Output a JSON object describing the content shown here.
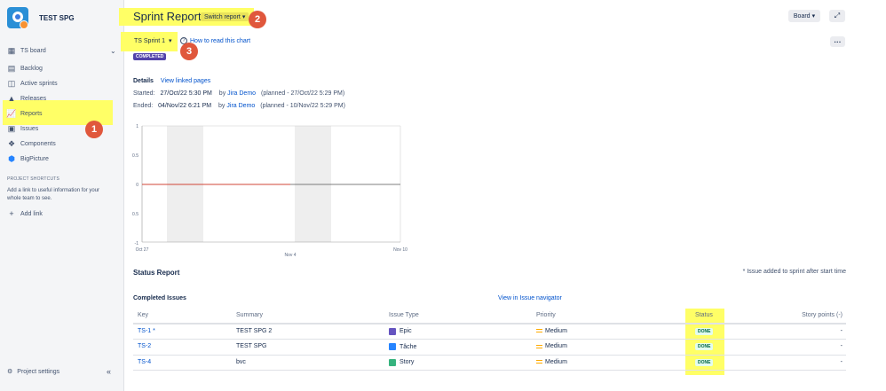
{
  "project": {
    "name": "TEST SPG"
  },
  "sidebar": {
    "board_label": "TS board",
    "items": [
      {
        "label": "Backlog",
        "icon": "backlog-icon"
      },
      {
        "label": "Active sprints",
        "icon": "active-sprints-icon"
      },
      {
        "label": "Releases",
        "icon": "releases-icon"
      },
      {
        "label": "Reports",
        "icon": "reports-icon"
      },
      {
        "label": "Issues",
        "icon": "issues-icon"
      },
      {
        "label": "Components",
        "icon": "components-icon"
      },
      {
        "label": "BigPicture",
        "icon": "bigpicture-icon"
      }
    ],
    "shortcuts_title": "PROJECT SHORTCUTS",
    "shortcuts_text": "Add a link to useful information for your whole team to see.",
    "add_link": "Add link",
    "settings": "Project settings"
  },
  "annotations": [
    "1",
    "2",
    "3"
  ],
  "header": {
    "title": "Sprint Report",
    "switch_report": "Switch report",
    "board_button": "Board",
    "sprint_select": "TS Sprint 1",
    "how_to": "How to read this chart",
    "status_badge": "COMPLETED"
  },
  "details": {
    "label": "Details",
    "view_linked": "View linked pages",
    "started_label": "Started:",
    "started_value": "27/Oct/22 5:30 PM",
    "started_by": "by",
    "started_user": "Jira Demo",
    "started_planned": "(planned - 27/Oct/22 5:29 PM)",
    "ended_label": "Ended:",
    "ended_value": "04/Nov/22 6:21 PM",
    "ended_by": "by",
    "ended_user": "Jira Demo",
    "ended_planned": "(planned - 10/Nov/22 5:29 PM)"
  },
  "chart": {
    "y_ticks": [
      "1",
      "0.5",
      "0",
      "0.5",
      "-1"
    ],
    "x_ticks": [
      "Oct 27",
      "Nov 4",
      "Nov 10"
    ]
  },
  "status_report": {
    "title": "Status Report",
    "note": "* Issue added to sprint after start time",
    "completed_title": "Completed Issues",
    "view_navigator": "View in Issue navigator",
    "columns": [
      "Key",
      "Summary",
      "Issue Type",
      "Priority",
      "Status",
      "Story points (-)"
    ],
    "rows": [
      {
        "key": "TS-1 *",
        "summary": "TEST SPG 2",
        "type": "Epic",
        "type_color": "#6554c0",
        "priority": "Medium",
        "status": "DONE",
        "points": "-"
      },
      {
        "key": "TS-2",
        "summary": "TEST SPG",
        "type": "Tâche",
        "type_color": "#2684ff",
        "priority": "Medium",
        "status": "DONE",
        "points": "-"
      },
      {
        "key": "TS-4",
        "summary": "bvc",
        "type": "Story",
        "type_color": "#36b37e",
        "priority": "Medium",
        "status": "DONE",
        "points": "-"
      }
    ]
  }
}
